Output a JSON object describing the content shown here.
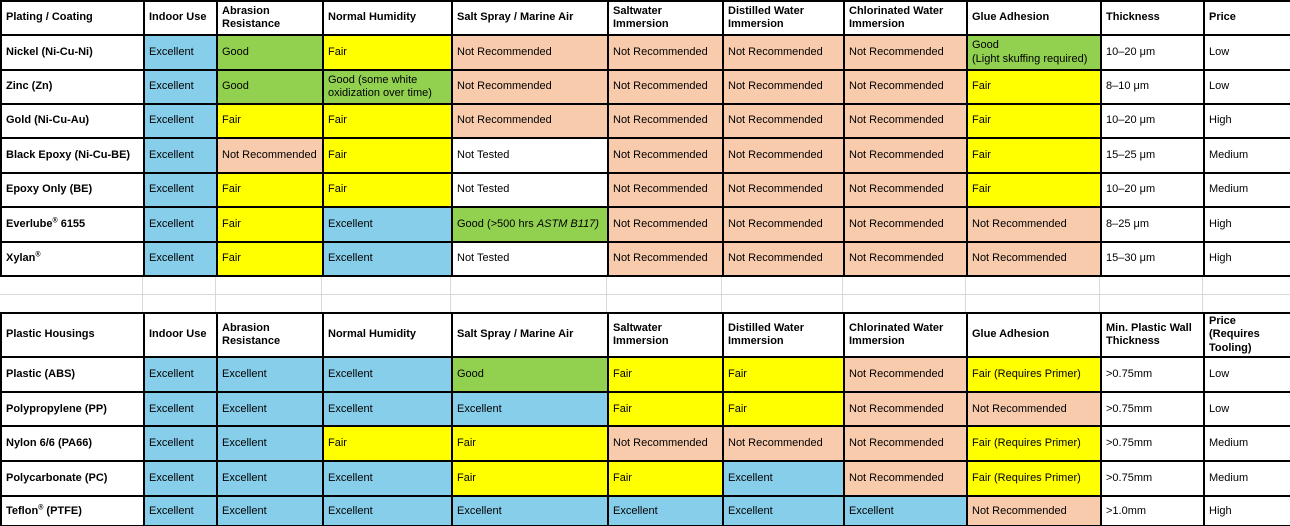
{
  "colors": {
    "excellent_blue": "#87CEEB",
    "good_green": "#92D050",
    "fair_yellow": "#FFFF00",
    "not_recommended_peach": "#F8CBAD",
    "background_white": "#FFFFFF",
    "border_black": "#000000",
    "gridline_grey": "#D9D9D9"
  },
  "tables": [
    {
      "name": "Plating / Coating",
      "headers": [
        "Plating / Coating",
        "Indoor Use",
        "Abrasion Resistance",
        "Normal Humidity",
        "Salt Spray / Marine Air",
        "Saltwater Immersion",
        "Distilled Water Immersion",
        "Chlorinated Water Immersion",
        "Glue Adhesion",
        "Thickness",
        "Price"
      ],
      "rows": [
        {
          "label": "Nickel (Ni-Cu-Ni)",
          "cells": [
            {
              "text": "Excellent",
              "bg": "blue"
            },
            {
              "text": "Good",
              "bg": "green"
            },
            {
              "text": "Fair",
              "bg": "yellow"
            },
            {
              "text": "Not Recommended",
              "bg": "peach"
            },
            {
              "text": "Not Recommended",
              "bg": "peach"
            },
            {
              "text": "Not Recommended",
              "bg": "peach"
            },
            {
              "text": "Not Recommended",
              "bg": "peach"
            },
            {
              "text": "Good\n(Light skuffing required)",
              "bg": "green"
            },
            {
              "text": "10–20 μm",
              "bg": "white"
            },
            {
              "text": "Low",
              "bg": "white"
            }
          ]
        },
        {
          "label": "Zinc (Zn)",
          "cells": [
            {
              "text": "Excellent",
              "bg": "blue"
            },
            {
              "text": "Good",
              "bg": "green"
            },
            {
              "text": "Good (some white oxidization over time)",
              "bg": "green"
            },
            {
              "text": "Not Recommended",
              "bg": "peach"
            },
            {
              "text": "Not Recommended",
              "bg": "peach"
            },
            {
              "text": "Not Recommended",
              "bg": "peach"
            },
            {
              "text": "Not Recommended",
              "bg": "peach"
            },
            {
              "text": "Fair",
              "bg": "yellow"
            },
            {
              "text": "8–10 μm",
              "bg": "white"
            },
            {
              "text": "Low",
              "bg": "white"
            }
          ]
        },
        {
          "label": "Gold (Ni-Cu-Au)",
          "cells": [
            {
              "text": "Excellent",
              "bg": "blue"
            },
            {
              "text": "Fair",
              "bg": "yellow"
            },
            {
              "text": "Fair",
              "bg": "yellow"
            },
            {
              "text": "Not Recommended",
              "bg": "peach"
            },
            {
              "text": "Not Recommended",
              "bg": "peach"
            },
            {
              "text": "Not Recommended",
              "bg": "peach"
            },
            {
              "text": "Not Recommended",
              "bg": "peach"
            },
            {
              "text": "Fair",
              "bg": "yellow"
            },
            {
              "text": "10–20 μm",
              "bg": "white"
            },
            {
              "text": "High",
              "bg": "white"
            }
          ]
        },
        {
          "label": "Black Epoxy (Ni-Cu-BE)",
          "cells": [
            {
              "text": "Excellent",
              "bg": "blue"
            },
            {
              "text": "Not Recommended",
              "bg": "peach"
            },
            {
              "text": "Fair",
              "bg": "yellow"
            },
            {
              "text": "Not Tested",
              "bg": "white"
            },
            {
              "text": "Not Recommended",
              "bg": "peach"
            },
            {
              "text": "Not Recommended",
              "bg": "peach"
            },
            {
              "text": "Not Recommended",
              "bg": "peach"
            },
            {
              "text": "Fair",
              "bg": "yellow"
            },
            {
              "text": "15–25 μm",
              "bg": "white"
            },
            {
              "text": "Medium",
              "bg": "white"
            }
          ]
        },
        {
          "label": "Epoxy Only (BE)",
          "cells": [
            {
              "text": "Excellent",
              "bg": "blue"
            },
            {
              "text": "Fair",
              "bg": "yellow"
            },
            {
              "text": "Fair",
              "bg": "yellow"
            },
            {
              "text": "Not Tested",
              "bg": "white"
            },
            {
              "text": "Not Recommended",
              "bg": "peach"
            },
            {
              "text": "Not Recommended",
              "bg": "peach"
            },
            {
              "text": "Not Recommended",
              "bg": "peach"
            },
            {
              "text": "Fair",
              "bg": "yellow"
            },
            {
              "text": "10–20 μm",
              "bg": "white"
            },
            {
              "text": "Medium",
              "bg": "white"
            }
          ]
        },
        {
          "label": "Everlube® 6155",
          "cells": [
            {
              "text": "Excellent",
              "bg": "blue"
            },
            {
              "text": "Fair",
              "bg": "yellow"
            },
            {
              "text": "Excellent",
              "bg": "blue"
            },
            {
              "text": "Good (>500 hrs ASTM B117)",
              "italic": "ASTM B117)",
              "bg": "green"
            },
            {
              "text": "Not Recommended",
              "bg": "peach"
            },
            {
              "text": "Not Recommended",
              "bg": "peach"
            },
            {
              "text": "Not Recommended",
              "bg": "peach"
            },
            {
              "text": "Not Recommended",
              "bg": "peach"
            },
            {
              "text": "8–25 μm",
              "bg": "white"
            },
            {
              "text": "High",
              "bg": "white"
            }
          ]
        },
        {
          "label": "Xylan®",
          "cells": [
            {
              "text": "Excellent",
              "bg": "blue"
            },
            {
              "text": "Fair",
              "bg": "yellow"
            },
            {
              "text": "Excellent",
              "bg": "blue"
            },
            {
              "text": "Not Tested",
              "bg": "white"
            },
            {
              "text": "Not Recommended",
              "bg": "peach"
            },
            {
              "text": "Not Recommended",
              "bg": "peach"
            },
            {
              "text": "Not Recommended",
              "bg": "peach"
            },
            {
              "text": "Not Recommended",
              "bg": "peach"
            },
            {
              "text": "15–30 μm",
              "bg": "white"
            },
            {
              "text": "High",
              "bg": "white"
            }
          ]
        }
      ]
    },
    {
      "name": "Plastic Housings",
      "headers": [
        "Plastic Housings",
        "Indoor Use",
        "Abrasion Resistance",
        "Normal Humidity",
        "Salt Spray / Marine Air",
        "Saltwater Immersion",
        "Distilled Water Immersion",
        "Chlorinated Water Immersion",
        "Glue Adhesion",
        "Min. Plastic Wall Thickness",
        "Price (Requires Tooling)"
      ],
      "rows": [
        {
          "label": "Plastic (ABS)",
          "cells": [
            {
              "text": "Excellent",
              "bg": "blue"
            },
            {
              "text": "Excellent",
              "bg": "blue"
            },
            {
              "text": "Excellent",
              "bg": "blue"
            },
            {
              "text": "Good",
              "bg": "green"
            },
            {
              "text": "Fair",
              "bg": "yellow"
            },
            {
              "text": "Fair",
              "bg": "yellow"
            },
            {
              "text": "Not Recommended",
              "bg": "peach"
            },
            {
              "text": "Fair (Requires Primer)",
              "bg": "yellow"
            },
            {
              "text": ">0.75mm",
              "bg": "white"
            },
            {
              "text": "Low",
              "bg": "white"
            }
          ]
        },
        {
          "label": "Polypropylene (PP)",
          "cells": [
            {
              "text": "Excellent",
              "bg": "blue"
            },
            {
              "text": "Excellent",
              "bg": "blue"
            },
            {
              "text": "Excellent",
              "bg": "blue"
            },
            {
              "text": "Excellent",
              "bg": "blue"
            },
            {
              "text": "Fair",
              "bg": "yellow"
            },
            {
              "text": "Fair",
              "bg": "yellow"
            },
            {
              "text": "Not Recommended",
              "bg": "peach"
            },
            {
              "text": "Not Recommended",
              "bg": "peach"
            },
            {
              "text": ">0.75mm",
              "bg": "white"
            },
            {
              "text": "Low",
              "bg": "white"
            }
          ]
        },
        {
          "label": "Nylon 6/6 (PA66)",
          "cells": [
            {
              "text": "Excellent",
              "bg": "blue"
            },
            {
              "text": "Excellent",
              "bg": "blue"
            },
            {
              "text": "Fair",
              "bg": "yellow"
            },
            {
              "text": "Fair",
              "bg": "yellow"
            },
            {
              "text": "Not Recommended",
              "bg": "peach"
            },
            {
              "text": "Not Recommended",
              "bg": "peach"
            },
            {
              "text": "Not Recommended",
              "bg": "peach"
            },
            {
              "text": "Fair (Requires Primer)",
              "bg": "yellow"
            },
            {
              "text": ">0.75mm",
              "bg": "white"
            },
            {
              "text": "Medium",
              "bg": "white"
            }
          ]
        },
        {
          "label": "Polycarbonate (PC)",
          "cells": [
            {
              "text": "Excellent",
              "bg": "blue"
            },
            {
              "text": "Excellent",
              "bg": "blue"
            },
            {
              "text": "Excellent",
              "bg": "blue"
            },
            {
              "text": "Fair",
              "bg": "yellow"
            },
            {
              "text": "Fair",
              "bg": "yellow"
            },
            {
              "text": "Excellent",
              "bg": "blue"
            },
            {
              "text": "Not Recommended",
              "bg": "peach"
            },
            {
              "text": "Fair (Requires Primer)",
              "bg": "yellow"
            },
            {
              "text": ">0.75mm",
              "bg": "white"
            },
            {
              "text": "Medium",
              "bg": "white"
            }
          ]
        },
        {
          "label": "Teflon® (PTFE)",
          "cells": [
            {
              "text": "Excellent",
              "bg": "blue"
            },
            {
              "text": "Excellent",
              "bg": "blue"
            },
            {
              "text": "Excellent",
              "bg": "blue"
            },
            {
              "text": "Excellent",
              "bg": "blue"
            },
            {
              "text": "Excellent",
              "bg": "blue"
            },
            {
              "text": "Excellent",
              "bg": "blue"
            },
            {
              "text": "Excellent",
              "bg": "blue"
            },
            {
              "text": "Not Recommended",
              "bg": "peach"
            },
            {
              "text": ">1.0mm",
              "bg": "white"
            },
            {
              "text": "High",
              "bg": "white"
            }
          ]
        }
      ]
    }
  ]
}
